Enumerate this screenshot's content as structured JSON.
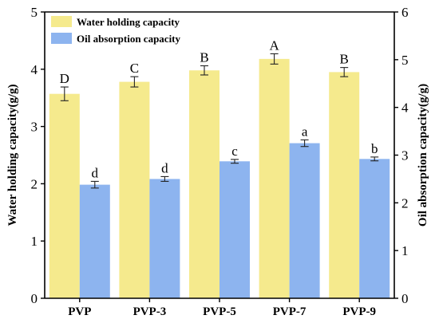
{
  "chart_data": {
    "type": "bar",
    "categories": [
      "PVP",
      "PVP-3",
      "PVP-5",
      "PVP-7",
      "PVP-9"
    ],
    "series": [
      {
        "name": "Water holding capacity",
        "axis": "left",
        "color": "#f5ea8d",
        "values": [
          3.57,
          3.78,
          3.98,
          4.18,
          3.95
        ],
        "errors": [
          0.12,
          0.09,
          0.08,
          0.09,
          0.08
        ],
        "labels": [
          "D",
          "C",
          "B",
          "A",
          "B"
        ]
      },
      {
        "name": "Oil absorption capacity",
        "axis": "right",
        "color": "#8db4ef",
        "values": [
          2.38,
          2.5,
          2.87,
          3.25,
          2.92
        ],
        "errors": [
          0.07,
          0.05,
          0.04,
          0.07,
          0.04
        ],
        "labels": [
          "d",
          "d",
          "c",
          "a",
          "b"
        ]
      }
    ],
    "y_left": {
      "label": "Water holding capacity(g/g)",
      "lim": [
        0,
        5
      ],
      "ticks": [
        "0",
        "1",
        "2",
        "3",
        "4",
        "5"
      ]
    },
    "y_right": {
      "label": "Oil absorption capacity(g/g)",
      "lim": [
        0,
        6
      ],
      "ticks": [
        "0",
        "1",
        "2",
        "3",
        "4",
        "5",
        "6"
      ]
    },
    "legend": "top-left",
    "grid": false
  }
}
